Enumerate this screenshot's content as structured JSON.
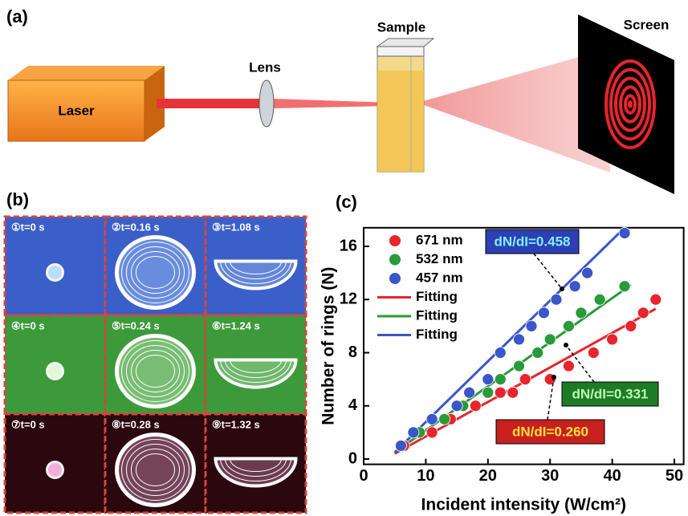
{
  "panel_a": {
    "label": "(a)",
    "laser": "Laser",
    "lens": "Lens",
    "sample": "Sample",
    "screen": "Screen"
  },
  "panel_b": {
    "label": "(b)",
    "frames": [
      "①t=0 s",
      "②t=0.16 s",
      "③t=1.08 s",
      "④t=0 s",
      "⑤t=0.24 s",
      "⑥t=1.24 s",
      "⑦t=0 s",
      "⑧t=0.28 s",
      "⑨t=1.32 s"
    ]
  },
  "panel_c": {
    "label": "(c)"
  },
  "chart_data": {
    "type": "scatter",
    "xlabel": "Incident intensity (W/cm²)",
    "ylabel": "Number of rings (N)",
    "xlim": [
      0,
      51.5
    ],
    "ylim": [
      -0.4,
      17.4
    ],
    "xticks": [
      0,
      10,
      20,
      30,
      40,
      50
    ],
    "yticks": [
      0,
      4,
      8,
      12,
      16
    ],
    "series": [
      {
        "name": "671 nm",
        "color": "#e8242c",
        "mode": "points",
        "x": [
          6.5,
          11,
          14,
          18,
          22,
          24,
          26,
          30,
          33,
          37,
          40,
          43,
          45,
          47
        ],
        "values": [
          1,
          2,
          3,
          4,
          5,
          5,
          6,
          6,
          7,
          8,
          9,
          10,
          11,
          12
        ]
      },
      {
        "name": "532 nm",
        "color": "#2a9a3a",
        "mode": "points",
        "x": [
          6,
          9,
          13,
          16,
          20,
          22,
          25,
          28,
          30,
          33,
          35,
          38,
          42
        ],
        "values": [
          1,
          2,
          3,
          4,
          5,
          6,
          7,
          8,
          9,
          10,
          11,
          12,
          13
        ]
      },
      {
        "name": "457 nm",
        "color": "#3a56c8",
        "mode": "points",
        "x": [
          6,
          8,
          11,
          15,
          17,
          20,
          22,
          25,
          27,
          29,
          31,
          34,
          36,
          42
        ],
        "values": [
          1,
          2,
          3,
          4,
          5,
          6,
          8,
          9,
          10,
          11,
          12,
          13,
          14,
          17
        ]
      },
      {
        "name": "Fitting",
        "color": "#e8242c",
        "mode": "line",
        "x": [
          5,
          47
        ],
        "values": [
          0.4,
          11.3
        ]
      },
      {
        "name": "Fitting",
        "color": "#2a9a3a",
        "mode": "line",
        "x": [
          5,
          43
        ],
        "values": [
          0.5,
          13.1
        ]
      },
      {
        "name": "Fitting",
        "color": "#3a56c8",
        "mode": "line",
        "x": [
          5,
          42
        ],
        "values": [
          0.5,
          17.4
        ]
      }
    ],
    "annotations": [
      "dN/dI=0.458",
      "dN/dI=0.331",
      "dN/dI=0.260"
    ]
  }
}
